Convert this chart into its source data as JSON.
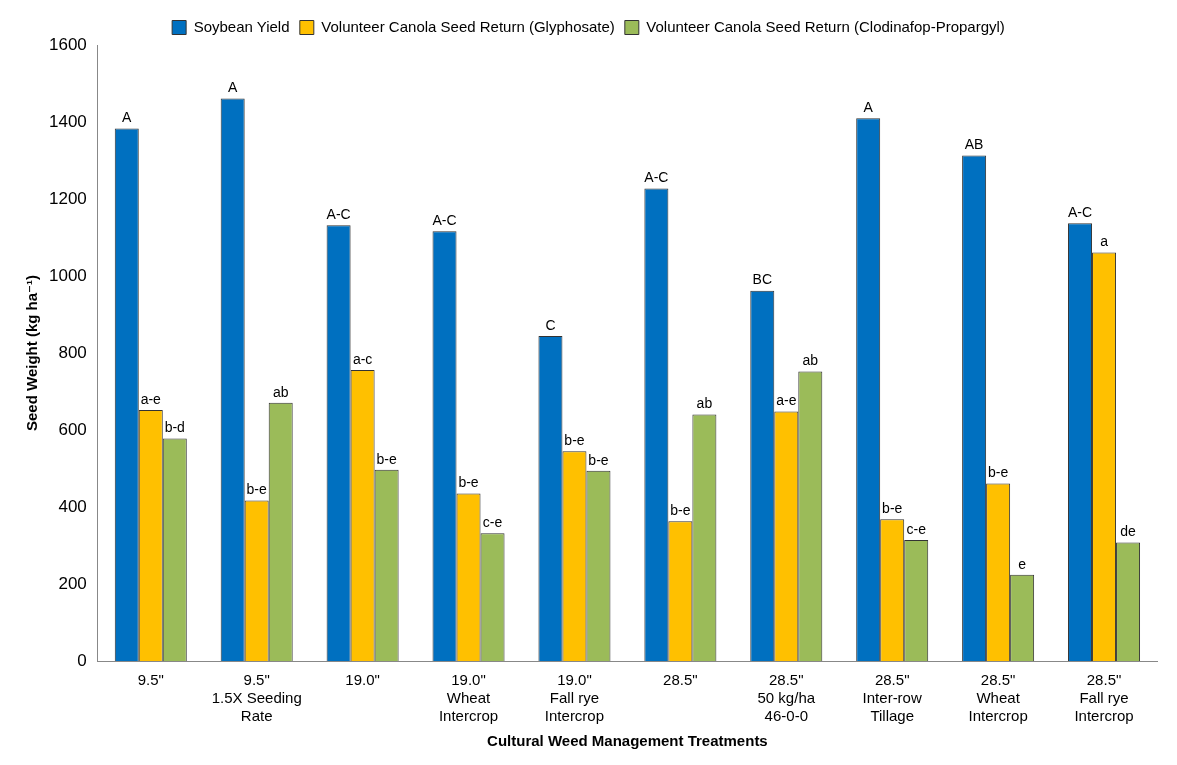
{
  "chart_data": {
    "type": "bar",
    "xlabel": "Cultural Weed Management Treatments",
    "ylabel": "Seed Weight (kg ha⁻¹)",
    "categories": [
      "9.5\"",
      "9.5\"\n1.5X Seeding\nRate",
      "19.0\"",
      "19.0\"\nWheat\nIntercrop",
      "19.0\"\nFall rye\nIntercrop",
      "28.5\"",
      "28.5\"\n50 kg/ha\n46-0-0",
      "28.5\"\nInter-row\nTillage",
      "28.5\"\nWheat\nIntercrop",
      "28.5\"\nFall rye\nIntercrop"
    ],
    "series": [
      {
        "name": "Soybean Yield",
        "color": "#0070c0",
        "values": [
          1383,
          1461,
          1132,
          1116,
          844,
          1227,
          962,
          1410,
          1313,
          1137
        ],
        "value_labels": [
          "A",
          "A",
          "A-C",
          "A-C",
          "C",
          "A-C",
          "BC",
          "A",
          "AB",
          "A-C"
        ]
      },
      {
        "name": "Volunteer Canola Seed Return (Glyphosate)",
        "color": "#ffc000",
        "values": [
          652,
          417,
          756,
          435,
          545,
          363,
          648,
          368,
          461,
          1061
        ],
        "value_labels": [
          "a-e",
          "b-e",
          "a-c",
          "b-e",
          "b-e",
          "b-e",
          "a-e",
          "b-e",
          "b-e",
          "a"
        ]
      },
      {
        "name": "Volunteer Canola Seed Return (Clodinafop-Propargyl)",
        "color": "#9bbb59",
        "values": [
          578,
          671,
          497,
          332,
          494,
          640,
          752,
          314,
          224,
          308
        ],
        "value_labels": [
          "b-d",
          "ab",
          "b-e",
          "c-e",
          "b-e",
          "ab",
          "ab",
          "c-e",
          "e",
          "de"
        ]
      }
    ],
    "ylim": [
      0,
      1600
    ],
    "yticks": [
      0,
      200,
      400,
      600,
      800,
      1000,
      1200,
      1400,
      1600
    ],
    "grid": false,
    "legend": "top"
  }
}
